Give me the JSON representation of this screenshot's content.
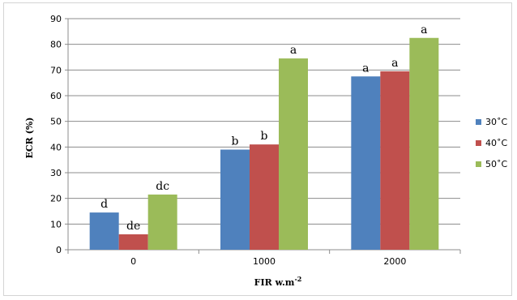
{
  "chart_data": {
    "type": "bar",
    "categories": [
      "0",
      "1000",
      "2000"
    ],
    "series": [
      {
        "name": "30˚C",
        "color": "#4F81BD",
        "values": [
          14.5,
          39,
          67.5
        ],
        "labels": [
          "d",
          "b",
          "a"
        ]
      },
      {
        "name": "40˚C",
        "color": "#C0504D",
        "values": [
          6,
          41,
          69.5
        ],
        "labels": [
          "de",
          "b",
          "a"
        ]
      },
      {
        "name": "50˚C",
        "color": "#9BBB59",
        "values": [
          21.5,
          74.5,
          82.5
        ],
        "labels": [
          "dc",
          "a",
          "a"
        ]
      }
    ],
    "ylim": [
      0,
      90
    ],
    "yticks": [
      "0",
      "10",
      "20",
      "30",
      "40",
      "50",
      "60",
      "70",
      "80",
      "90"
    ],
    "ylabel": "ECR (%)",
    "xlabel": "FIR  w.m",
    "xlabel_superscript": "-2",
    "grid": true,
    "legend_position": "right"
  }
}
